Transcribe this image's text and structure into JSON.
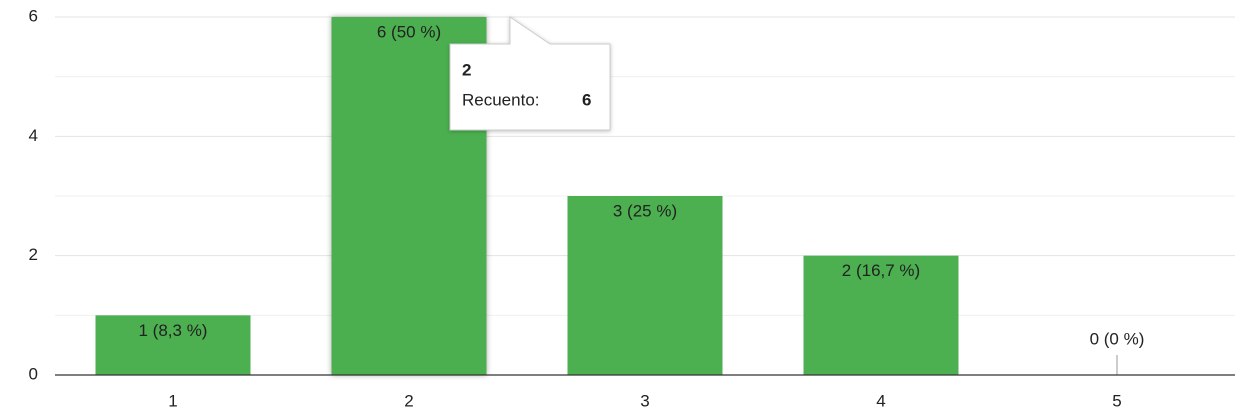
{
  "chart_data": {
    "type": "bar",
    "categories": [
      "1",
      "2",
      "3",
      "4",
      "5"
    ],
    "values": [
      1,
      6,
      3,
      2,
      0
    ],
    "value_labels": [
      "1 (8,3 %)",
      "6 (50 %)",
      "3 (25 %)",
      "2 (16,7 %)",
      "0 (0 %)"
    ],
    "color": "#4caf50",
    "ylim": [
      0,
      6
    ],
    "yticks": [
      0,
      2,
      4,
      6
    ],
    "minor_gridlines": [
      1,
      3,
      5
    ],
    "grid": true,
    "tooltip": {
      "label": "Recuento:"
    }
  }
}
